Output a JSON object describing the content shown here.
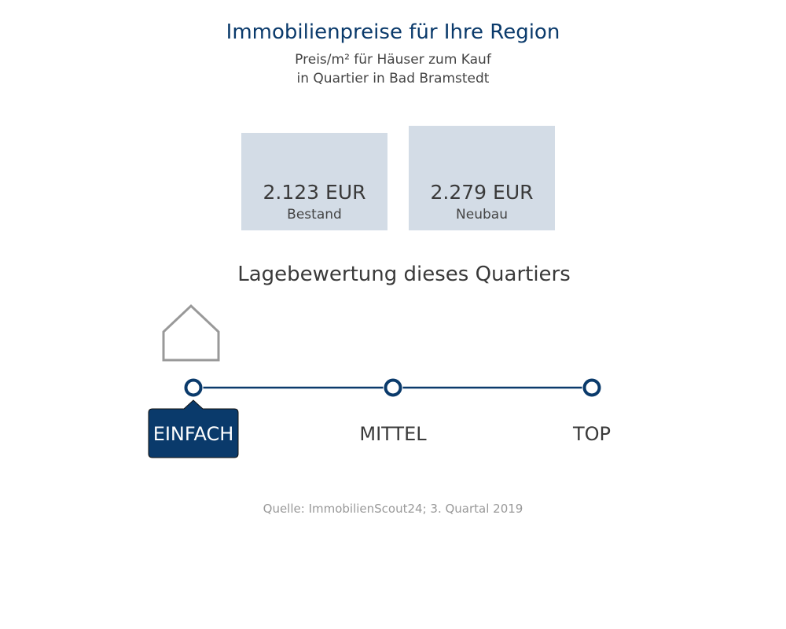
{
  "header": {
    "title": "Immobilienpreise für Ihre Region",
    "subtitle_line1": "Preis/m² für Häuser zum Kauf",
    "subtitle_line2": "in Quartier in Bad Bramstedt"
  },
  "prices": {
    "bestand": {
      "value": "2.123 EUR",
      "label": "Bestand"
    },
    "neubau": {
      "value": "2.279 EUR",
      "label": "Neubau"
    }
  },
  "location": {
    "title": "Lagebewertung dieses Quartiers",
    "levels": [
      "EINFACH",
      "MITTEL",
      "TOP"
    ],
    "selected_index": 0
  },
  "source": "Quelle: ImmobilienScout24; 3. Quartal 2019",
  "colors": {
    "title": "#0a3a6b",
    "accent": "#0a3a6b",
    "box": "#d3dce6",
    "house": "#999999",
    "source": "#999999"
  },
  "icons": {
    "house": "house-icon"
  },
  "chart_data": {
    "type": "bar",
    "categories": [
      "Bestand",
      "Neubau"
    ],
    "values": [
      2123,
      2279
    ]
  }
}
